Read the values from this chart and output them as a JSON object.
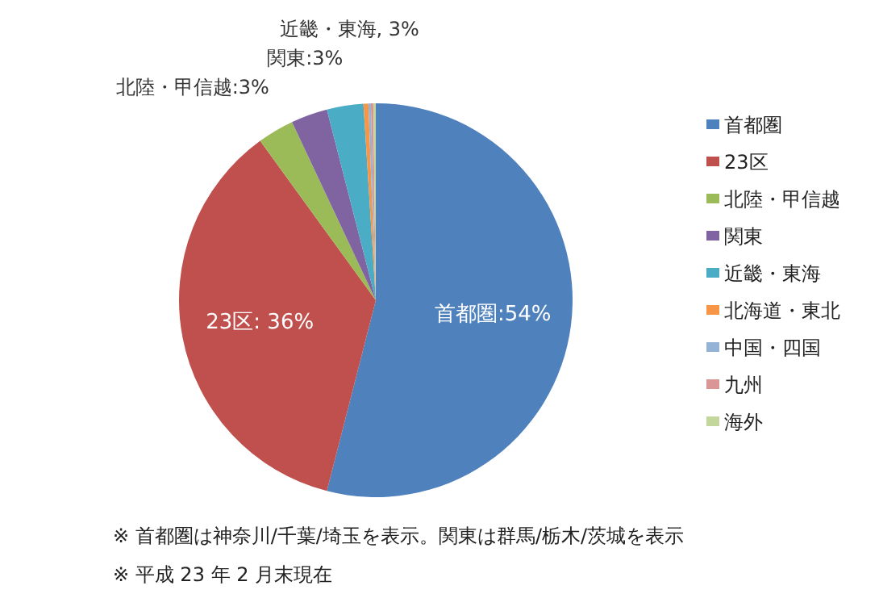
{
  "chart_data": {
    "type": "pie",
    "categories": [
      "首都圏",
      "23区",
      "北陸・甲信越",
      "関東",
      "近畿・東海",
      "北海道・東北",
      "中国・四国",
      "九州",
      "海外"
    ],
    "values": [
      54,
      36,
      3,
      3,
      3,
      0.4,
      0.2,
      0.2,
      0.2
    ],
    "value_labels": [
      "首都圏:54%",
      "23区: 36%",
      "北陸・甲信越:3%",
      "関東:3%",
      "近畿・東海, 3%",
      null,
      null,
      null,
      null
    ],
    "colors": [
      "#4f81bd",
      "#c0504d",
      "#9bbb59",
      "#8064a2",
      "#4bacc6",
      "#f79646",
      "#95b3d7",
      "#d99694",
      "#c3d69b"
    ],
    "legend": "right",
    "annotations": [
      "※ 首都圏は神奈川/千葉/埼玉を表示。関東は群馬/栃木/茨城を表示",
      "※ 平成 23 年 2 月末現在"
    ]
  }
}
